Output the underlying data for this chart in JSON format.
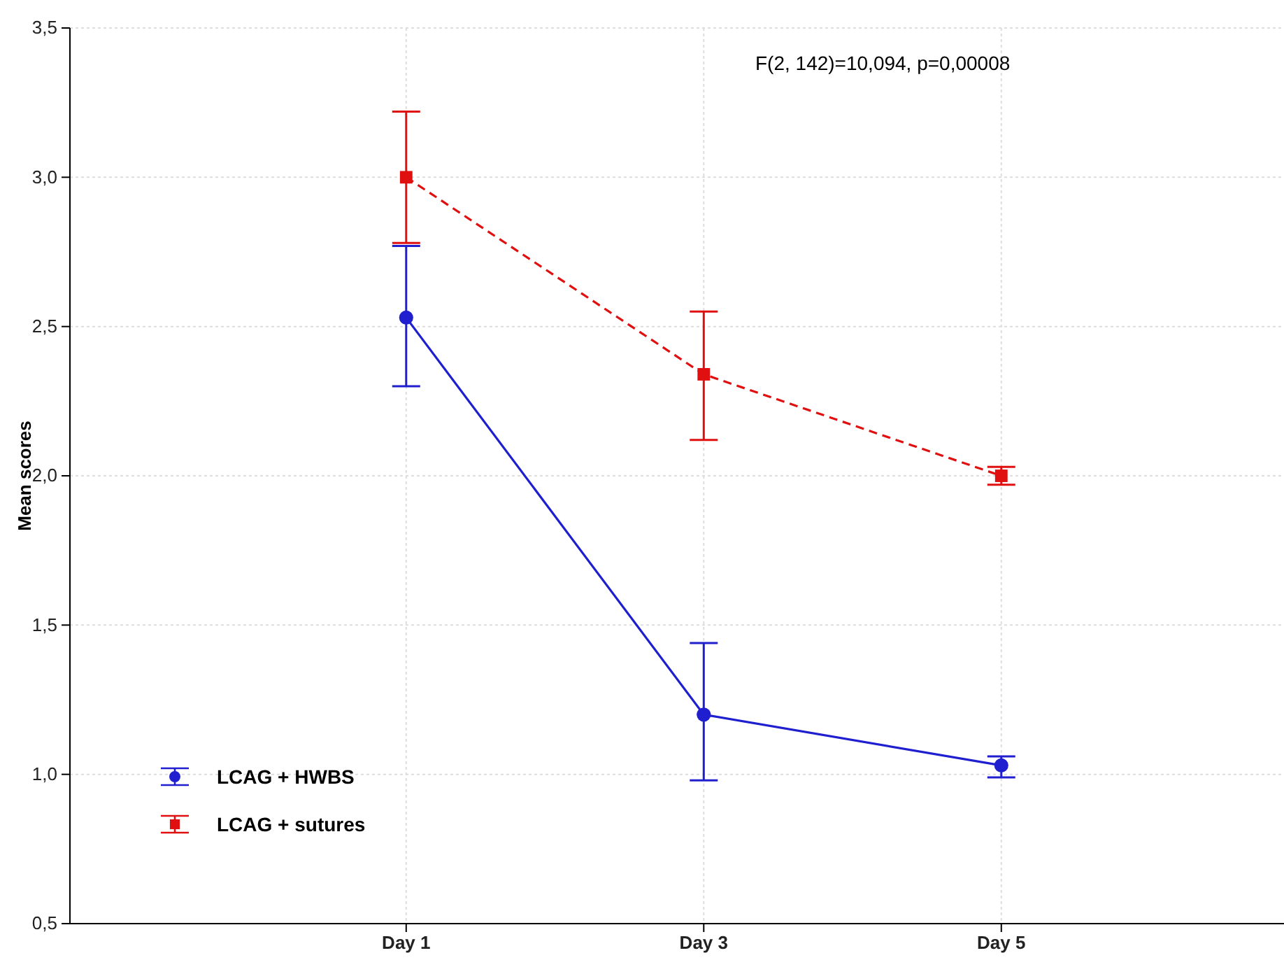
{
  "chart_data": {
    "type": "line",
    "ylabel": "Mean scores",
    "categories": [
      "Day 1",
      "Day 3",
      "Day 5"
    ],
    "series": [
      {
        "name": "LCAG + HWBS",
        "color": "#1f1fd0",
        "values": [
          2.53,
          1.2,
          1.03
        ],
        "errors": [
          [
            2.3,
            2.77
          ],
          [
            0.98,
            1.44
          ],
          [
            0.99,
            1.06
          ]
        ],
        "marker": "circle",
        "line_style": "solid"
      },
      {
        "name": "LCAG + sutures",
        "color": "#e01010",
        "values": [
          3.0,
          2.34,
          2.0
        ],
        "errors": [
          [
            2.78,
            3.22
          ],
          [
            2.12,
            2.55
          ],
          [
            1.97,
            2.03
          ]
        ],
        "marker": "square",
        "line_style": "dashed"
      }
    ],
    "ylim": [
      0.5,
      3.5
    ],
    "yticks": [
      {
        "value": 0.5,
        "label": "0,5"
      },
      {
        "value": 1,
        "label": "1,0"
      },
      {
        "value": 1.5,
        "label": "1,5"
      },
      {
        "value": 2,
        "label": "2,0"
      },
      {
        "value": 2.5,
        "label": "2,5"
      },
      {
        "value": 3,
        "label": "3,0"
      },
      {
        "value": 3.5,
        "label": "3,5"
      }
    ],
    "grid": true,
    "legend": "bottom left",
    "annotations": [
      "F(2, 142)=10,094, p=0,00008"
    ]
  }
}
